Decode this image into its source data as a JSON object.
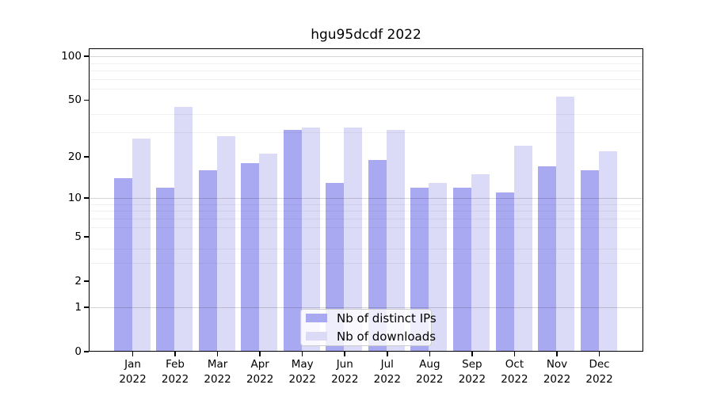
{
  "chart_data": {
    "type": "bar",
    "title": "hgu95dcdf 2022",
    "categories": [
      "Jan 2022",
      "Feb 2022",
      "Mar 2022",
      "Apr 2022",
      "May 2022",
      "Jun 2022",
      "Jul 2022",
      "Aug 2022",
      "Sep 2022",
      "Oct 2022",
      "Nov 2022",
      "Dec 2022"
    ],
    "series": [
      {
        "name": "Nb of distinct IPs",
        "color": "#a9a9f1",
        "values": [
          14,
          12,
          16,
          18,
          31,
          13,
          19,
          12,
          12,
          11,
          17,
          16
        ]
      },
      {
        "name": "Nb of downloads",
        "color": "#dbdbf7",
        "values": [
          27,
          45,
          28,
          21,
          32,
          32,
          31,
          13,
          15,
          24,
          53,
          22
        ]
      }
    ],
    "xlabel": "",
    "ylabel": "",
    "yscale": "log1p",
    "ylim": [
      0,
      113
    ],
    "yticks": [
      0,
      1,
      2,
      5,
      10,
      20,
      50,
      100
    ],
    "grid": {
      "minor": [
        3,
        4,
        6,
        7,
        8,
        9,
        30,
        40,
        60,
        70,
        80,
        90
      ],
      "major": [
        1,
        10,
        100
      ]
    },
    "legend_position": "bottom-center",
    "frame_color": "#000000"
  }
}
